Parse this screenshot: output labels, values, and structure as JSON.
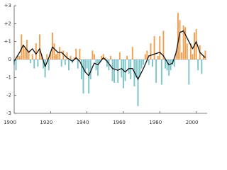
{
  "chart_data": {
    "type": "bar",
    "x": [
      1900,
      1901,
      1902,
      1903,
      1904,
      1905,
      1906,
      1907,
      1908,
      1909,
      1910,
      1911,
      1912,
      1913,
      1914,
      1915,
      1916,
      1917,
      1918,
      1919,
      1920,
      1921,
      1922,
      1923,
      1924,
      1925,
      1926,
      1927,
      1928,
      1929,
      1930,
      1931,
      1932,
      1933,
      1934,
      1935,
      1936,
      1937,
      1938,
      1939,
      1940,
      1941,
      1942,
      1943,
      1944,
      1945,
      1946,
      1947,
      1948,
      1949,
      1950,
      1951,
      1952,
      1953,
      1954,
      1955,
      1956,
      1957,
      1958,
      1959,
      1960,
      1961,
      1962,
      1963,
      1964,
      1965,
      1966,
      1967,
      1968,
      1969,
      1970,
      1971,
      1972,
      1973,
      1974,
      1975,
      1976,
      1977,
      1978,
      1979,
      1980,
      1981,
      1982,
      1983,
      1984,
      1985,
      1986,
      1987,
      1988,
      1989,
      1990,
      1991,
      1992,
      1993,
      1994,
      1995,
      1996,
      1997,
      1998,
      1999,
      2000,
      2001,
      2002,
      2003,
      2004,
      2005
    ],
    "values": [
      -0.3,
      -0.6,
      0.2,
      0.2,
      1.4,
      0.8,
      0.6,
      1.1,
      0.5,
      -0.2,
      0.3,
      -0.5,
      0.9,
      -0.4,
      1.4,
      0.3,
      -0.5,
      -1.0,
      0.3,
      -0.6,
      0.4,
      1.5,
      0.9,
      0.3,
      0.4,
      0.7,
      -0.4,
      0.5,
      -0.3,
      0.4,
      -0.6,
      0.2,
      -0.2,
      0.1,
      0.6,
      -0.5,
      0.6,
      -1.1,
      -1.9,
      -0.7,
      -0.5,
      -1.9,
      -1.1,
      0.5,
      0.3,
      -0.6,
      -0.9,
      -0.2,
      0.2,
      0.3,
      0.1,
      -0.4,
      -0.6,
      0.2,
      -1.2,
      -1.3,
      -0.5,
      -1.3,
      0.4,
      -1.0,
      -1.6,
      -1.2,
      0.2,
      -0.8,
      -1.1,
      0.7,
      -1.5,
      -1.0,
      -2.6,
      -0.9,
      -0.5,
      -0.3,
      0.3,
      0.5,
      -0.3,
      0.9,
      -0.4,
      1.3,
      -1.3,
      0.2,
      1.3,
      -1.4,
      1.6,
      -0.5,
      -0.6,
      -0.9,
      -0.6,
      -0.3,
      -0.4,
      0.5,
      2.6,
      2.2,
      0.4,
      1.9,
      1.8,
      0.9,
      -1.4,
      0.9,
      0.3,
      1.5,
      1.7,
      -0.6,
      0.8,
      -0.8,
      0.2,
      0.5
    ],
    "positive_color": "#f0a050",
    "negative_color": "#7cc4c8",
    "line": {
      "color": "#111111",
      "x": [
        1900,
        1903,
        1905,
        1908,
        1910,
        1912,
        1914,
        1917,
        1919,
        1921,
        1924,
        1926,
        1929,
        1932,
        1934,
        1936,
        1939,
        1941,
        1944,
        1946,
        1949,
        1951,
        1954,
        1957,
        1959,
        1961,
        1963,
        1965,
        1968,
        1971,
        1974,
        1977,
        1980,
        1982,
        1985,
        1987,
        1989,
        1991,
        1993,
        1996,
        1998,
        2000,
        2002,
        2005
      ],
      "values": [
        -0.1,
        0.4,
        0.8,
        0.4,
        0.6,
        0.3,
        0.6,
        -0.4,
        0.1,
        0.7,
        0.4,
        0.4,
        0.1,
        -0.1,
        0.1,
        -0.1,
        -0.7,
        -0.9,
        -0.2,
        -0.3,
        0.1,
        -0.1,
        -0.5,
        -0.6,
        -0.5,
        -0.7,
        -0.5,
        -0.5,
        -1.1,
        -0.5,
        0.2,
        0.3,
        0.4,
        0.2,
        -0.3,
        -0.2,
        0.4,
        1.5,
        1.6,
        1.0,
        0.6,
        1.0,
        0.4,
        0.1
      ]
    },
    "xlim": [
      1900,
      2006
    ],
    "xticks": [
      1900,
      1920,
      1940,
      1960,
      1980,
      2000
    ],
    "ylim": [
      -3,
      3
    ],
    "yticks": [
      {
        "value": 3,
        "label": "+3"
      },
      {
        "value": 2,
        "label": "+2"
      },
      {
        "value": 1,
        "label": "+1"
      },
      0,
      -1,
      -2,
      -3
    ]
  }
}
